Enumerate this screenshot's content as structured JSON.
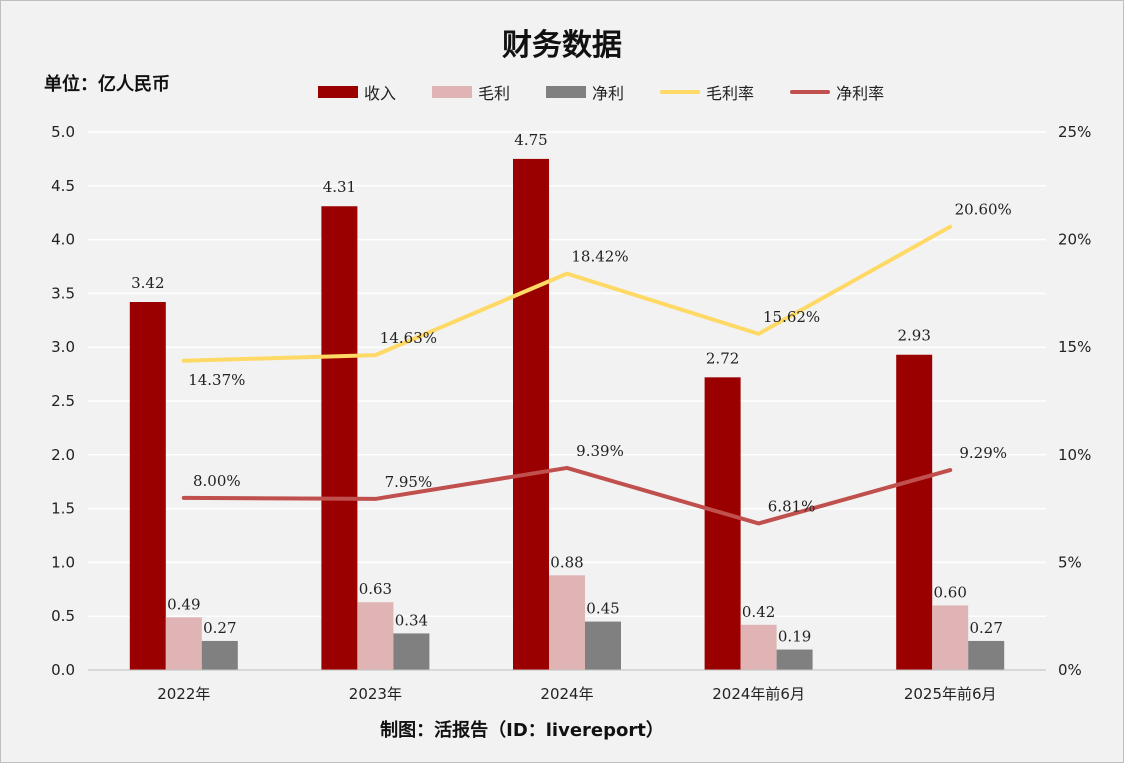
{
  "chart_data": {
    "type": "bar",
    "title": "财务数据",
    "unit_label": "单位：亿人民币",
    "source": "制图：活报告（ID：livereport）",
    "categories": [
      "2022年",
      "2023年",
      "2024年",
      "2024年前6月",
      "2025年前6月"
    ],
    "series": [
      {
        "name": "收入",
        "kind": "bar",
        "axis": "left",
        "color": "#9b0000",
        "values": [
          3.42,
          4.31,
          4.75,
          2.72,
          2.93
        ],
        "labels": [
          "3.42",
          "4.31",
          "4.75",
          "2.72",
          "2.93"
        ]
      },
      {
        "name": "毛利",
        "kind": "bar",
        "axis": "left",
        "color": "#e0b4b4",
        "values": [
          0.49,
          0.63,
          0.88,
          0.42,
          0.6
        ],
        "labels": [
          "0.49",
          "0.63",
          "0.88",
          "0.42",
          "0.60"
        ]
      },
      {
        "name": "净利",
        "kind": "bar",
        "axis": "left",
        "color": "#808080",
        "values": [
          0.27,
          0.34,
          0.45,
          0.19,
          0.27
        ],
        "labels": [
          "0.27",
          "0.34",
          "0.45",
          "0.19",
          "0.27"
        ]
      },
      {
        "name": "毛利率",
        "kind": "line",
        "axis": "right",
        "color": "#ffd966",
        "values": [
          14.37,
          14.63,
          18.42,
          15.62,
          20.6
        ],
        "labels": [
          "14.37%",
          "14.63%",
          "18.42%",
          "15.62%",
          "20.60%"
        ],
        "label_pos": [
          "below",
          "above",
          "above",
          "above",
          "above"
        ]
      },
      {
        "name": "净利率",
        "kind": "line",
        "axis": "right",
        "color": "#c0504d",
        "values": [
          8.0,
          7.95,
          9.39,
          6.81,
          9.29
        ],
        "labels": [
          "8.00%",
          "7.95%",
          "9.39%",
          "6.81%",
          "9.29%"
        ],
        "label_pos": [
          "above",
          "above",
          "above",
          "above",
          "above"
        ]
      }
    ],
    "y_left": {
      "min": 0,
      "max": 5,
      "ticks": [
        "0.0",
        "0.5",
        "1.0",
        "1.5",
        "2.0",
        "2.5",
        "3.0",
        "3.5",
        "4.0",
        "4.5",
        "5.0"
      ]
    },
    "y_right": {
      "min": 0,
      "max": 25,
      "ticks": [
        "0%",
        "5%",
        "10%",
        "15%",
        "20%",
        "25%"
      ]
    },
    "grid": true,
    "legend_position": "top"
  }
}
